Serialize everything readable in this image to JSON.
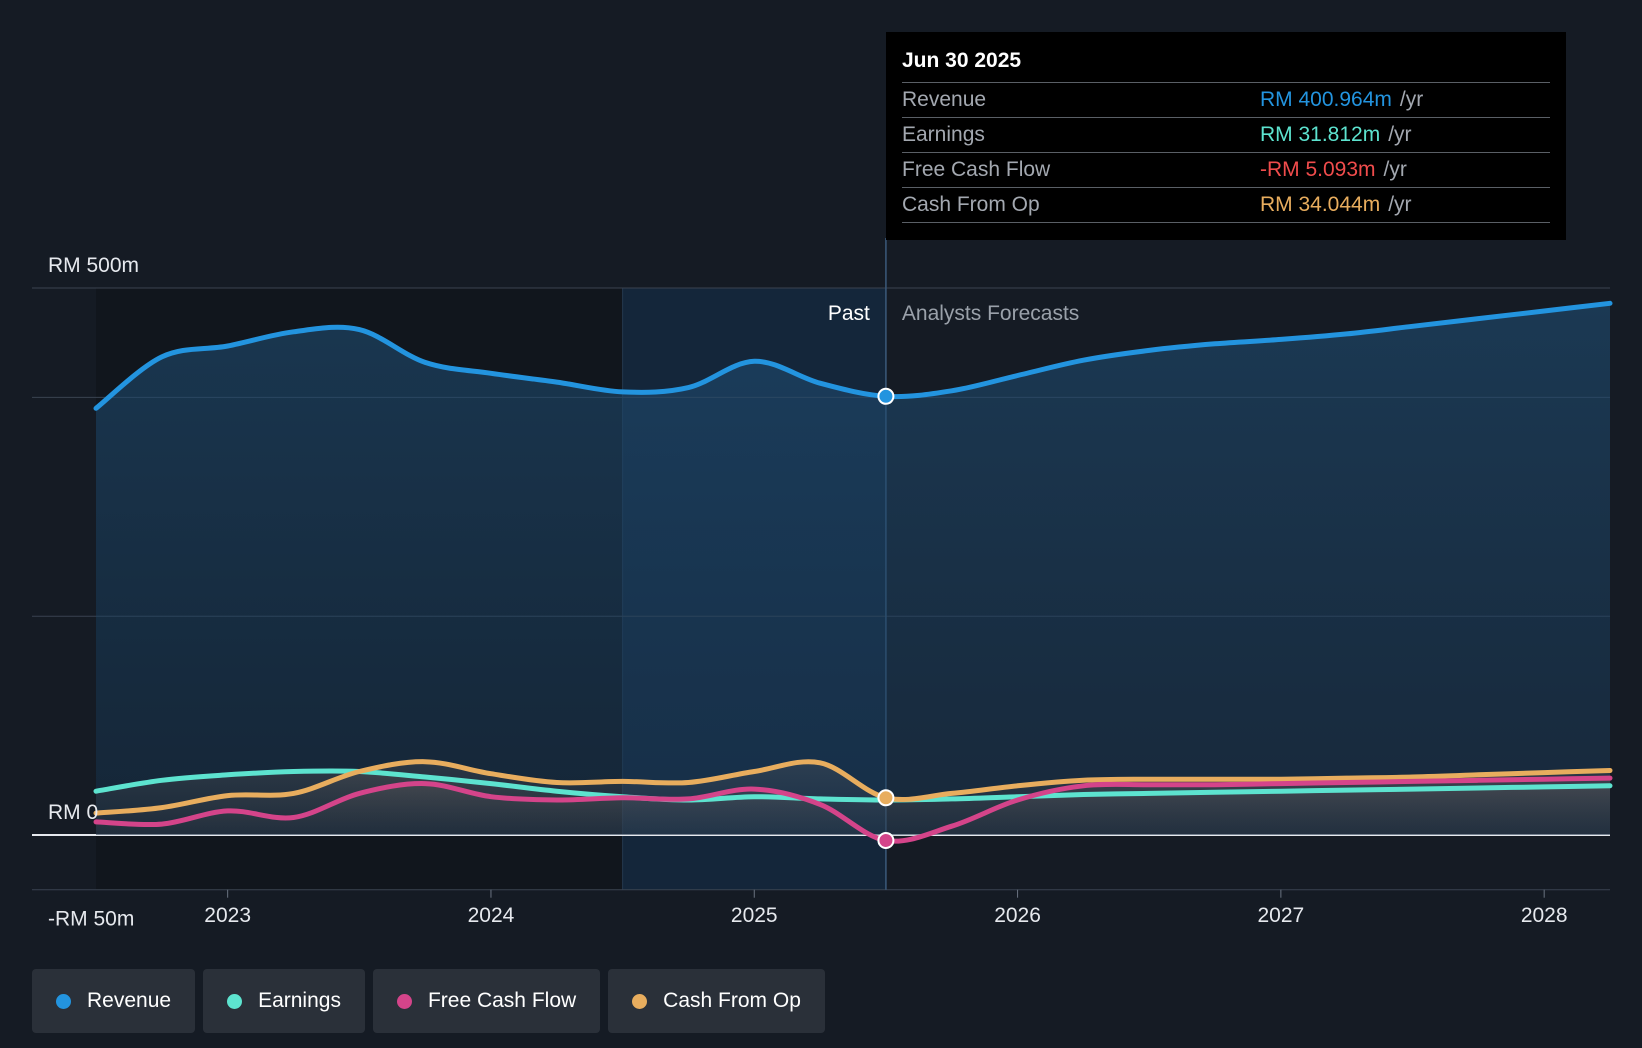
{
  "chart_data": {
    "type": "area",
    "y_tick_labels": [
      "RM 500m",
      "RM 0",
      "-RM 50m"
    ],
    "ylim": [
      -50,
      500
    ],
    "x_tick_labels": [
      "2023",
      "2024",
      "2025",
      "2026",
      "2027",
      "2028"
    ],
    "xlim": [
      2022.5,
      2028.25
    ],
    "past_label": "Past",
    "forecast_label": "Analysts Forecasts",
    "divider_x": 2025.5,
    "series": [
      {
        "name": "Revenue",
        "color": "#2394df",
        "x": [
          2022.5,
          2022.75,
          2023.0,
          2023.25,
          2023.5,
          2023.75,
          2024.0,
          2024.25,
          2024.5,
          2024.75,
          2025.0,
          2025.25,
          2025.5,
          2025.75,
          2026.0,
          2026.25,
          2026.5,
          2026.75,
          2027.0,
          2027.25,
          2027.5,
          2027.75,
          2028.0,
          2028.25
        ],
        "values": [
          390,
          437,
          447,
          460,
          462,
          432,
          422,
          414,
          405,
          409,
          433,
          413,
          401,
          406,
          420,
          434,
          443,
          449,
          453,
          458,
          465,
          472,
          479,
          486
        ]
      },
      {
        "name": "Earnings",
        "color": "#5de3cf",
        "x": [
          2022.5,
          2022.75,
          2023.0,
          2023.25,
          2023.5,
          2023.75,
          2024.0,
          2024.25,
          2024.5,
          2024.75,
          2025.0,
          2025.25,
          2025.5,
          2025.75,
          2026.0,
          2026.25,
          2026.5,
          2026.75,
          2027.0,
          2027.25,
          2027.5,
          2027.75,
          2028.0,
          2028.25
        ],
        "values": [
          40,
          50,
          55,
          58,
          58,
          53,
          47,
          40,
          35,
          32,
          35,
          33,
          32,
          33,
          35,
          37,
          38,
          39,
          40,
          41,
          42,
          43,
          44,
          45
        ]
      },
      {
        "name": "Free Cash Flow",
        "color": "#d4448a",
        "x": [
          2022.5,
          2022.75,
          2023.0,
          2023.25,
          2023.5,
          2023.75,
          2024.0,
          2024.25,
          2024.5,
          2024.75,
          2025.0,
          2025.25,
          2025.5,
          2025.75,
          2026.0,
          2026.25,
          2026.5,
          2026.75,
          2027.0,
          2027.25,
          2027.5,
          2027.75,
          2028.0,
          2028.25
        ],
        "values": [
          12,
          10,
          22,
          16,
          38,
          47,
          35,
          32,
          34,
          33,
          42,
          28,
          -5,
          8,
          32,
          45,
          46,
          46,
          47,
          48,
          49,
          50,
          51,
          52
        ]
      },
      {
        "name": "Cash From Op",
        "color": "#e8ad5e",
        "x": [
          2022.5,
          2022.75,
          2023.0,
          2023.25,
          2023.5,
          2023.75,
          2024.0,
          2024.25,
          2024.5,
          2024.75,
          2025.0,
          2025.25,
          2025.5,
          2025.75,
          2026.0,
          2026.25,
          2026.5,
          2026.75,
          2027.0,
          2027.25,
          2027.5,
          2027.75,
          2028.0,
          2028.25
        ],
        "values": [
          20,
          25,
          36,
          38,
          58,
          67,
          56,
          48,
          49,
          48,
          58,
          66,
          34,
          38,
          45,
          50,
          51,
          51,
          51,
          52,
          53,
          55,
          57,
          59
        ]
      }
    ]
  },
  "tooltip": {
    "date": "Jun 30 2025",
    "unit": "/yr",
    "rows": [
      {
        "label": "Revenue",
        "value": "RM 400.964m",
        "color": "#2394df"
      },
      {
        "label": "Earnings",
        "value": "RM 31.812m",
        "color": "#5de3cf"
      },
      {
        "label": "Free Cash Flow",
        "value": "-RM 5.093m",
        "color": "#f04c4c"
      },
      {
        "label": "Cash From Op",
        "value": "RM 34.044m",
        "color": "#e8ad5e"
      }
    ]
  },
  "legend": [
    {
      "label": "Revenue",
      "color": "#2394df"
    },
    {
      "label": "Earnings",
      "color": "#5de3cf"
    },
    {
      "label": "Free Cash Flow",
      "color": "#d4448a"
    },
    {
      "label": "Cash From Op",
      "color": "#e8ad5e"
    }
  ]
}
